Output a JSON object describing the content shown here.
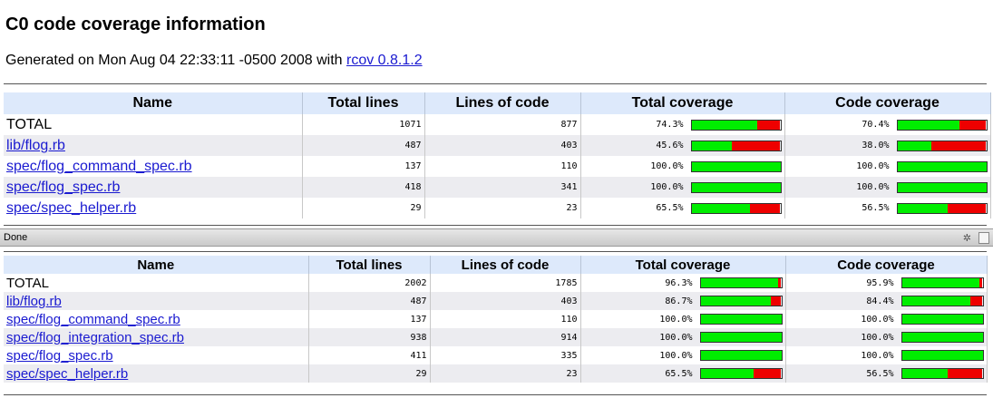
{
  "report": {
    "title": "C0 code coverage information",
    "generated_prefix": "Generated on Mon Aug 04 22:33:11 -0500 2008 with ",
    "generator_link": "rcov 0.8.1.2"
  },
  "columns": [
    "Name",
    "Total lines",
    "Lines of code",
    "Total coverage",
    "Code coverage"
  ],
  "top_rows": [
    {
      "name": "TOTAL",
      "link": false,
      "total": "1071",
      "loc": "877",
      "tc": "74.3%",
      "tcv": 0.743,
      "cc": "70.4%",
      "ccv": 0.704
    },
    {
      "name": "lib/flog.rb",
      "link": true,
      "total": "487",
      "loc": "403",
      "tc": "45.6%",
      "tcv": 0.456,
      "cc": "38.0%",
      "ccv": 0.38
    },
    {
      "name": "spec/flog_command_spec.rb",
      "link": true,
      "total": "137",
      "loc": "110",
      "tc": "100.0%",
      "tcv": 1.0,
      "cc": "100.0%",
      "ccv": 1.0
    },
    {
      "name": "spec/flog_spec.rb",
      "link": true,
      "total": "418",
      "loc": "341",
      "tc": "100.0%",
      "tcv": 1.0,
      "cc": "100.0%",
      "ccv": 1.0
    },
    {
      "name": "spec/spec_helper.rb",
      "link": true,
      "total": "29",
      "loc": "23",
      "tc": "65.5%",
      "tcv": 0.655,
      "cc": "56.5%",
      "ccv": 0.565
    }
  ],
  "bottom_rows": [
    {
      "name": "TOTAL",
      "link": false,
      "total": "2002",
      "loc": "1785",
      "tc": "96.3%",
      "tcv": 0.963,
      "cc": "95.9%",
      "ccv": 0.959
    },
    {
      "name": "lib/flog.rb",
      "link": true,
      "total": "487",
      "loc": "403",
      "tc": "86.7%",
      "tcv": 0.867,
      "cc": "84.4%",
      "ccv": 0.844
    },
    {
      "name": "spec/flog_command_spec.rb",
      "link": true,
      "total": "137",
      "loc": "110",
      "tc": "100.0%",
      "tcv": 1.0,
      "cc": "100.0%",
      "ccv": 1.0
    },
    {
      "name": "spec/flog_integration_spec.rb",
      "link": true,
      "total": "938",
      "loc": "914",
      "tc": "100.0%",
      "tcv": 1.0,
      "cc": "100.0%",
      "ccv": 1.0
    },
    {
      "name": "spec/flog_spec.rb",
      "link": true,
      "total": "411",
      "loc": "335",
      "tc": "100.0%",
      "tcv": 1.0,
      "cc": "100.0%",
      "ccv": 1.0
    },
    {
      "name": "spec/spec_helper.rb",
      "link": true,
      "total": "29",
      "loc": "23",
      "tc": "65.5%",
      "tcv": 0.655,
      "cc": "56.5%",
      "ccv": 0.565
    }
  ],
  "statusbar": {
    "text": "Done",
    "debug_icon": "bug-icon",
    "resize_icon": "resize-grip-icon"
  },
  "colors": {
    "covered": "#00ee00",
    "uncovered": "#ee0000",
    "header": "#dde9fb",
    "link": "#1a1ad0"
  }
}
